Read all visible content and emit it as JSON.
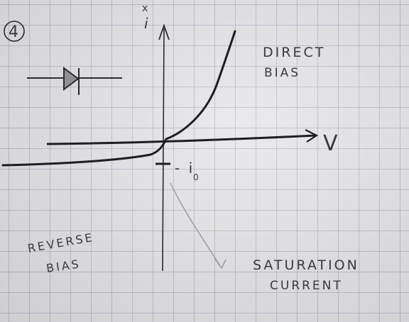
{
  "page": {
    "number": "4"
  },
  "axes": {
    "y_label": "i",
    "x_label": "V"
  },
  "labels": {
    "direct_bias": [
      "DIRECT",
      "BIAS"
    ],
    "reverse_bias": [
      "REVERSE",
      "BIAS"
    ],
    "saturation_current": [
      "SATURATION",
      "CURRENT"
    ],
    "minus_i0": "- i",
    "subscript_zero": "0"
  },
  "colors": {
    "ink": "#2b2b2e",
    "pencil": "#9a9a9e",
    "grid": "#8a98b8"
  },
  "icons": {
    "diode": "diode-icon",
    "arrow": "arrow-icon"
  }
}
